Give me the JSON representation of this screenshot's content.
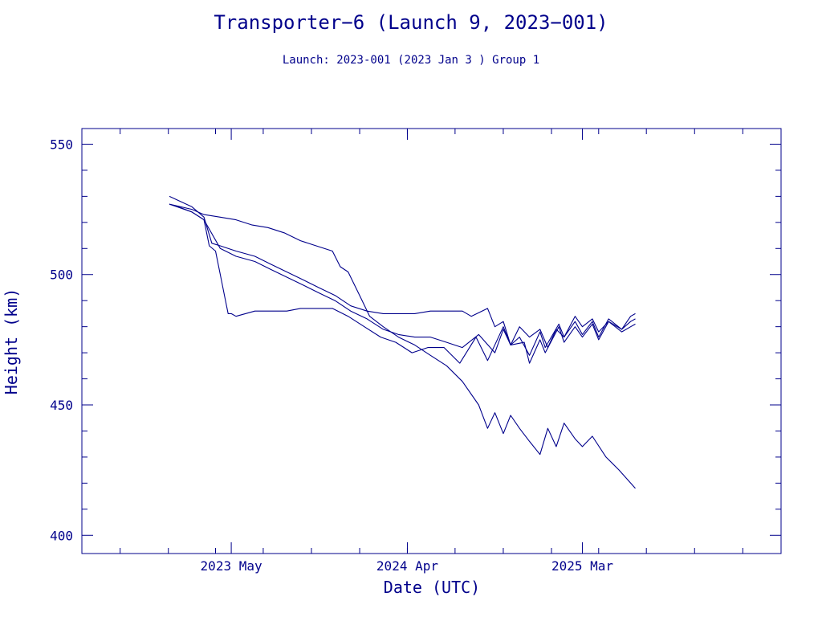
{
  "chart_data": {
    "type": "line",
    "title": "Transporter−6 (Launch 9, 2023−001)",
    "subtitle": "Launch: 2023-001  (2023 Jan  3 )  Group 1",
    "xlabel": "Date (UTC)",
    "ylabel": "Height (km)",
    "x_range": [
      "2022-07-20",
      "2026-03-15"
    ],
    "ylim": [
      393,
      556
    ],
    "y_ticks": [
      400,
      450,
      500,
      550
    ],
    "x_ticks": [
      {
        "date": "2023-05-01",
        "label": "2023 May"
      },
      {
        "date": "2024-04-01",
        "label": "2024 Apr"
      },
      {
        "date": "2025-03-01",
        "label": "2025 Mar"
      }
    ],
    "grid": false,
    "legend": "none",
    "line_color": "#00008b",
    "series": [
      {
        "x": [
          "2023-01-03",
          "2023-01-20",
          "2023-02-15",
          "2023-03-10",
          "2023-03-20",
          "2023-04-01",
          "2023-04-10",
          "2023-04-20",
          "2023-04-25",
          "2023-05-01",
          "2023-05-10",
          "2023-06-15",
          "2023-07-15",
          "2023-08-15",
          "2023-09-10",
          "2023-10-10",
          "2023-11-10",
          "2023-12-10",
          "2024-01-10",
          "2024-02-10",
          "2024-03-10",
          "2024-04-10",
          "2024-05-10",
          "2024-06-10",
          "2024-07-10",
          "2024-08-10",
          "2024-09-01",
          "2024-10-01",
          "2024-10-15",
          "2024-11-10",
          "2024-11-20",
          "2024-12-10",
          "2024-12-20",
          "2025-01-15",
          "2025-01-25",
          "2025-02-15",
          "2025-03-01",
          "2025-03-20",
          "2025-04-01",
          "2025-04-20",
          "2025-05-15",
          "2025-06-01",
          "2025-06-10"
        ],
        "y": [
          527,
          526,
          524,
          521,
          511,
          509,
          500,
          490,
          485,
          485,
          484,
          486,
          486,
          486,
          487,
          487,
          487,
          484,
          480,
          476,
          474,
          470,
          472,
          472,
          466,
          476,
          467,
          480,
          473,
          474,
          466,
          475,
          470,
          480,
          474,
          480,
          476,
          481,
          475,
          482,
          478,
          480,
          481
        ]
      },
      {
        "x": [
          "2023-01-03",
          "2023-02-15",
          "2023-03-10",
          "2023-04-10",
          "2023-05-10",
          "2023-06-15",
          "2023-07-15",
          "2023-08-15",
          "2023-09-15",
          "2023-10-15",
          "2023-11-15",
          "2023-12-15",
          "2024-01-15",
          "2024-02-15",
          "2024-03-15",
          "2024-04-15",
          "2024-05-15",
          "2024-06-15",
          "2024-07-15",
          "2024-08-15",
          "2024-09-15",
          "2024-10-01",
          "2024-10-15",
          "2024-11-01",
          "2024-11-20",
          "2024-12-10",
          "2024-12-20",
          "2025-01-15",
          "2025-01-25",
          "2025-02-15",
          "2025-03-01",
          "2025-03-20",
          "2025-04-01",
          "2025-04-20",
          "2025-05-15",
          "2025-06-01",
          "2025-06-10"
        ],
        "y": [
          527,
          524,
          521,
          510,
          507,
          505,
          502,
          499,
          496,
          493,
          490,
          486,
          483,
          479,
          477,
          476,
          476,
          474,
          472,
          477,
          470,
          479,
          473,
          476,
          469,
          478,
          472,
          481,
          476,
          482,
          477,
          482,
          476,
          483,
          479,
          482,
          483
        ]
      },
      {
        "x": [
          "2023-01-03",
          "2023-02-15",
          "2023-03-10",
          "2023-03-25",
          "2023-04-10",
          "2023-05-10",
          "2023-06-15",
          "2023-07-15",
          "2023-08-15",
          "2023-09-15",
          "2023-10-15",
          "2023-11-15",
          "2023-12-15",
          "2024-01-15",
          "2024-02-15",
          "2024-03-15",
          "2024-04-15",
          "2024-05-15",
          "2024-06-15",
          "2024-07-15",
          "2024-08-01",
          "2024-09-01",
          "2024-09-15",
          "2024-10-01",
          "2024-10-15",
          "2024-11-01",
          "2024-11-20",
          "2024-12-10",
          "2024-12-25",
          "2025-01-10",
          "2025-01-25",
          "2025-02-15",
          "2025-03-01",
          "2025-03-20",
          "2025-04-01",
          "2025-04-20",
          "2025-05-15",
          "2025-06-01",
          "2025-06-10"
        ],
        "y": [
          530,
          526,
          522,
          512,
          511,
          509,
          507,
          504,
          501,
          498,
          495,
          492,
          488,
          486,
          485,
          485,
          485,
          486,
          486,
          486,
          484,
          487,
          480,
          482,
          473,
          480,
          476,
          479,
          472,
          479,
          476,
          484,
          480,
          483,
          478,
          482,
          479,
          484,
          485
        ]
      },
      {
        "x": [
          "2023-01-03",
          "2023-02-15",
          "2023-03-10",
          "2023-04-10",
          "2023-05-10",
          "2023-06-10",
          "2023-07-10",
          "2023-08-10",
          "2023-09-10",
          "2023-10-10",
          "2023-11-10",
          "2023-11-25",
          "2023-12-10",
          "2024-01-01",
          "2024-01-20",
          "2024-02-15",
          "2024-03-15",
          "2024-04-15",
          "2024-05-15",
          "2024-06-15",
          "2024-07-15",
          "2024-08-15",
          "2024-09-01",
          "2024-09-15",
          "2024-10-01",
          "2024-10-15",
          "2024-11-01",
          "2024-11-20",
          "2024-12-10",
          "2024-12-25",
          "2025-01-10",
          "2025-01-25",
          "2025-02-15",
          "2025-03-01",
          "2025-03-20",
          "2025-04-15",
          "2025-05-10",
          "2025-06-10"
        ],
        "y": [
          527,
          525,
          523,
          522,
          521,
          519,
          518,
          516,
          513,
          511,
          509,
          503,
          501,
          492,
          484,
          480,
          476,
          473,
          469,
          465,
          459,
          450,
          441,
          447,
          439,
          446,
          441,
          436,
          431,
          441,
          434,
          443,
          437,
          434,
          438,
          430,
          425,
          418
        ]
      }
    ]
  }
}
